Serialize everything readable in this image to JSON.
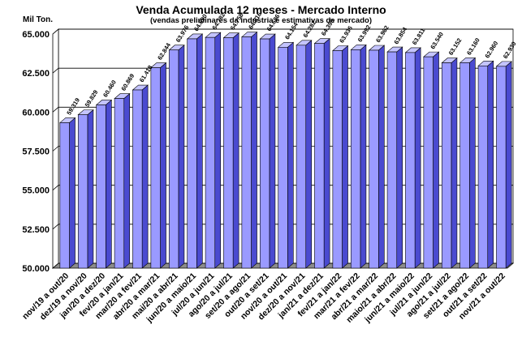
{
  "chart_data": {
    "type": "bar",
    "title": "Venda Acumulada 12 meses -  Mercado Interno",
    "subtitle": "(vendas preliminares da indústria e estimativas de mercado)",
    "ylabel": "Mil Ton.",
    "xlabel": "",
    "ylim": [
      50000,
      65000
    ],
    "yticks": [
      "50.000",
      "52.500",
      "55.000",
      "57.500",
      "60.000",
      "62.500",
      "65.000"
    ],
    "categories": [
      "nov/19 a out/20",
      "dez/19 a nov/20",
      "jan/20 a dez/20",
      "fev/20 a jan/21",
      "mar/20 a fev/21",
      "abr/20 a mar/21",
      "mai/20 a abr/21",
      "jun/20 a maio/21",
      "jul/20 a jun/21",
      "ago/20 a jul/21",
      "set/20 a ago/21",
      "out/20 a set/21",
      "nov/20 a out/21",
      "dez/20 a nov/21",
      "jan/21 a dez/21",
      "fev/21 a jan/22",
      "mar/21 a fev/22",
      "abr/21 a mar/22",
      "maio/21 a abr/22",
      "jun/21 a maio/22",
      "jul/21 a jun/22",
      "ago/21 a jul/22",
      "set/21 a ago/22",
      "out/21 a set/22",
      "nov/21 a out/22"
    ],
    "values": [
      59319,
      59829,
      60460,
      60869,
      61418,
      62844,
      63976,
      64690,
      64782,
      64758,
      64816,
      64686,
      64154,
      64282,
      64395,
      63936,
      63992,
      63962,
      63854,
      63811,
      63540,
      63152,
      63160,
      62960,
      62930
    ],
    "value_labels": [
      "59.319",
      "59.829",
      "60.460",
      "60.869",
      "61.418",
      "62.844",
      "63.976",
      "64.690",
      "64.782",
      "64.758",
      "64.816",
      "64.686",
      "64.154",
      "64.282",
      "64.395",
      "63.936",
      "63.992",
      "63.962",
      "63.854",
      "63.811",
      "63.540",
      "63.152",
      "63.160",
      "62.960",
      "62.930"
    ],
    "grid": true,
    "legend": "none",
    "colors": {
      "bar_front": "#9a9aff",
      "bar_side": "#4a4ad0",
      "bar_top": "#c4c4ff",
      "grid": "#000000",
      "floor": "#8c8c8c",
      "back_wall": "#ffffff"
    }
  }
}
